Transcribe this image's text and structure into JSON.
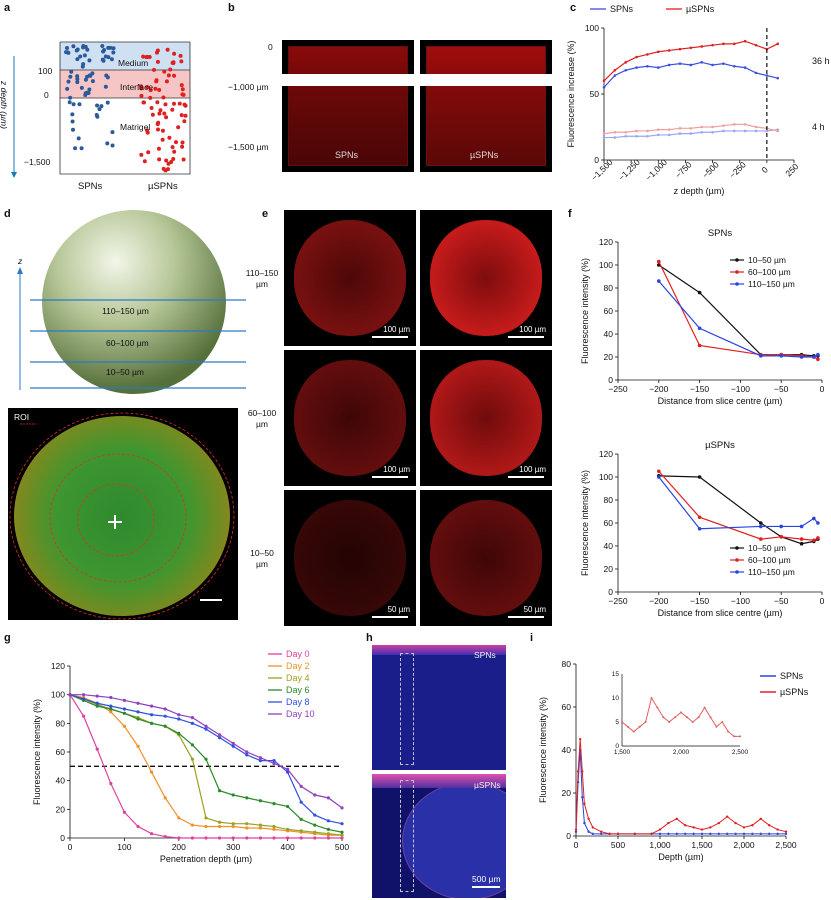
{
  "panels": {
    "a": {
      "label": "a",
      "y_axis_label": "z depth (µm)",
      "tick_100": "100",
      "tick_0": "0",
      "tick_m1500": "−1,500",
      "layer_medium": "Medium",
      "layer_interface": "Interface",
      "layer_matrigel": "Matrigel",
      "col_spns": "SPNs",
      "col_uspns": "µSPNs"
    },
    "b": {
      "label": "b",
      "tick_0": "0",
      "tick_m1000": "−1,000 µm",
      "tick_m1500": "−1,500 µm",
      "caption_spns": "SPNs",
      "caption_uspns": "µSPNs"
    },
    "c": {
      "label": "c"
    },
    "d": {
      "label": "d",
      "axis_z": "z",
      "band_110_150": "110–150 µm",
      "band_60_100": "60–100 µm",
      "band_10_50": "10–50 µm",
      "roi_label": "ROI"
    },
    "e": {
      "label": "e",
      "row1_label": "110–150 µm",
      "row2_label": "60–100 µm",
      "row3_label": "10–50 µm",
      "scale_100": "100 µm",
      "scale_50": "50 µm"
    },
    "f": {
      "label": "f"
    },
    "g": {
      "label": "g"
    },
    "h": {
      "label": "h",
      "caption_spns": "SPNs",
      "caption_uspns": "µSPNs",
      "scale": "500 µm"
    },
    "i": {
      "label": "i"
    }
  },
  "chart_data": [
    {
      "id": "c",
      "type": "line",
      "title": "",
      "xlabel": "z depth (µm)",
      "ylabel": "Fluorescence increase (%)",
      "xlim": [
        -1500,
        250
      ],
      "ylim": [
        0,
        100
      ],
      "xticks": [
        -1500,
        -1250,
        -1000,
        -750,
        -500,
        -250,
        0,
        250
      ],
      "xtick_labels": [
        "−1,500",
        "−1,250",
        "−1,000",
        "−750",
        "−500",
        "−250",
        "0",
        "250"
      ],
      "yticks": [
        0,
        50,
        100
      ],
      "legend": [
        "SPNs",
        "µSPNs"
      ],
      "legend_position": "top",
      "annotations": [
        "36 h",
        "4 h"
      ],
      "colors": {
        "SPNs": "#3b4fe0",
        "µSPNs": "#e02020",
        "SPNs_light": "#9aa6f0",
        "µSPNs_light": "#f0a0a0"
      },
      "x": [
        -1500,
        -1400,
        -1300,
        -1200,
        -1100,
        -1000,
        -900,
        -800,
        -700,
        -600,
        -500,
        -400,
        -300,
        -200,
        -100,
        0,
        100
      ],
      "series": [
        {
          "name": "SPNs",
          "label": "36 h",
          "values": [
            55,
            64,
            68,
            70,
            71,
            70,
            72,
            73,
            72,
            74,
            72,
            73,
            71,
            70,
            66,
            64,
            62
          ]
        },
        {
          "name": "µSPNs",
          "label": "36 h",
          "values": [
            60,
            68,
            74,
            78,
            80,
            82,
            83,
            84,
            85,
            86,
            87,
            88,
            88,
            90,
            87,
            84,
            88
          ]
        },
        {
          "name": "SPNs",
          "label": "4 h",
          "values": [
            17,
            17,
            18,
            18,
            18,
            19,
            19,
            20,
            20,
            21,
            21,
            22,
            22,
            22,
            22,
            22,
            23
          ]
        },
        {
          "name": "µSPNs",
          "label": "4 h",
          "values": [
            20,
            21,
            21,
            22,
            22,
            23,
            23,
            24,
            24,
            25,
            25,
            26,
            27,
            27,
            25,
            24,
            22
          ]
        }
      ]
    },
    {
      "id": "f-top",
      "type": "line",
      "title": "SPNs",
      "xlabel": "Distance from slice centre (µm)",
      "ylabel": "Fluorescence intensity (%)",
      "xlim": [
        -250,
        0
      ],
      "ylim": [
        0,
        120
      ],
      "xticks": [
        -250,
        -200,
        -150,
        -100,
        -50,
        0
      ],
      "xtick_labels": [
        "−250",
        "−200",
        "−150",
        "−100",
        "−50",
        "0"
      ],
      "yticks": [
        0,
        20,
        40,
        60,
        80,
        100,
        120
      ],
      "legend_position": "right",
      "x": [
        -200,
        -150,
        -75,
        -50,
        -25,
        -10,
        -5
      ],
      "series": [
        {
          "name": "10–50 µm",
          "color": "#111111",
          "values": [
            100,
            76,
            22,
            22,
            22,
            21,
            21
          ]
        },
        {
          "name": "60–100 µm",
          "color": "#e02020",
          "values": [
            103,
            30,
            22,
            22,
            21,
            20,
            18
          ]
        },
        {
          "name": "110–150 µm",
          "color": "#2a44e0",
          "values": [
            86,
            45,
            21,
            21,
            20,
            20,
            22
          ]
        }
      ]
    },
    {
      "id": "f-bottom",
      "type": "line",
      "title": "µSPNs",
      "xlabel": "Distance from slice centre (µm)",
      "ylabel": "Fluorescence intensity (%)",
      "xlim": [
        -250,
        0
      ],
      "ylim": [
        0,
        120
      ],
      "xticks": [
        -250,
        -200,
        -150,
        -100,
        -50,
        0
      ],
      "xtick_labels": [
        "−250",
        "−200",
        "−150",
        "−100",
        "−50",
        "0"
      ],
      "yticks": [
        0,
        20,
        40,
        60,
        80,
        100,
        120
      ],
      "legend_position": "bottom-right",
      "x": [
        -200,
        -150,
        -75,
        -50,
        -25,
        -10,
        -5
      ],
      "series": [
        {
          "name": "10–50 µm",
          "color": "#111111",
          "values": [
            101,
            100,
            60,
            48,
            42,
            44,
            46
          ]
        },
        {
          "name": "60–100 µm",
          "color": "#e02020",
          "values": [
            105,
            65,
            46,
            48,
            46,
            45,
            47
          ]
        },
        {
          "name": "110–150 µm",
          "color": "#2a44e0",
          "values": [
            100,
            55,
            57,
            57,
            57,
            64,
            60
          ]
        }
      ]
    },
    {
      "id": "g",
      "type": "line",
      "title": "",
      "xlabel": "Penetration depth (µm)",
      "ylabel": "Fluorescence intensity (%)",
      "xlim": [
        0,
        500
      ],
      "ylim": [
        0,
        120
      ],
      "xticks": [
        0,
        100,
        200,
        300,
        400,
        500
      ],
      "yticks": [
        0,
        20,
        40,
        60,
        80,
        100,
        120
      ],
      "reference_line_y": 50,
      "legend_position": "top-right",
      "x": [
        0,
        25,
        50,
        75,
        100,
        125,
        150,
        175,
        200,
        225,
        250,
        275,
        300,
        325,
        350,
        375,
        400,
        425,
        450,
        475,
        500
      ],
      "series": [
        {
          "name": "Day 0",
          "color": "#e040a0",
          "values": [
            100,
            85,
            62,
            38,
            18,
            8,
            3,
            1,
            0,
            0,
            0,
            0,
            0,
            0,
            0,
            0,
            0,
            0,
            0,
            0,
            0
          ]
        },
        {
          "name": "Day 2",
          "color": "#f0902a",
          "values": [
            100,
            98,
            94,
            88,
            78,
            64,
            46,
            28,
            14,
            9,
            8,
            8,
            8,
            7,
            7,
            6,
            5,
            4,
            3,
            2,
            2
          ]
        },
        {
          "name": "Day 4",
          "color": "#9aa020",
          "values": [
            100,
            97,
            93,
            90,
            87,
            84,
            80,
            78,
            72,
            55,
            14,
            11,
            10,
            10,
            9,
            8,
            6,
            5,
            4,
            3,
            2
          ]
        },
        {
          "name": "Day 6",
          "color": "#2a8a2a",
          "values": [
            100,
            96,
            92,
            90,
            87,
            83,
            80,
            78,
            73,
            65,
            55,
            33,
            30,
            28,
            26,
            24,
            22,
            13,
            9,
            6,
            4
          ]
        },
        {
          "name": "Day 8",
          "color": "#3050e0",
          "values": [
            100,
            97,
            94,
            92,
            90,
            88,
            86,
            85,
            83,
            80,
            76,
            70,
            64,
            58,
            54,
            54,
            46,
            25,
            16,
            12,
            10
          ]
        },
        {
          "name": "Day 10",
          "color": "#9040c0",
          "values": [
            100,
            100,
            99,
            98,
            96,
            94,
            92,
            90,
            86,
            84,
            78,
            72,
            66,
            60,
            56,
            52,
            48,
            36,
            30,
            28,
            21
          ]
        }
      ]
    },
    {
      "id": "i",
      "type": "line",
      "title": "",
      "xlabel": "Depth (µm)",
      "ylabel": "Fluorescence intensity (%)",
      "xlim": [
        0,
        2500
      ],
      "ylim": [
        0,
        80
      ],
      "xticks": [
        0,
        500,
        1000,
        1500,
        2000,
        2500
      ],
      "xtick_labels": [
        "0",
        "500",
        "1,000",
        "1,500",
        "2,000",
        "2,500"
      ],
      "yticks": [
        0,
        20,
        40,
        60,
        80
      ],
      "legend": [
        "SPNs",
        "µSPNs"
      ],
      "legend_position": "top-right",
      "x": [
        0,
        25,
        50,
        75,
        100,
        150,
        200,
        300,
        400,
        500,
        700,
        900,
        1000,
        1100,
        1200,
        1300,
        1400,
        1500,
        1600,
        1700,
        1800,
        1900,
        2000,
        2100,
        2200,
        2300,
        2400,
        2500
      ],
      "series": [
        {
          "name": "SPNs",
          "color": "#2a44e0",
          "values": [
            2,
            25,
            40,
            18,
            6,
            2,
            1,
            1,
            1,
            1,
            1,
            1,
            1,
            1,
            1,
            1,
            1,
            1,
            1,
            1,
            1,
            1,
            1,
            1,
            1,
            1,
            1,
            1
          ]
        },
        {
          "name": "µSPNs",
          "color": "#e02020",
          "values": [
            3,
            30,
            45,
            30,
            15,
            8,
            4,
            2,
            1,
            1,
            1,
            1,
            3,
            6,
            8,
            5,
            4,
            3,
            4,
            6,
            9,
            6,
            4,
            5,
            8,
            5,
            3,
            2
          ]
        }
      ],
      "inset": {
        "xlim": [
          1500,
          2500
        ],
        "ylim": [
          0,
          15
        ],
        "xticks": [
          1500,
          2000,
          2500
        ],
        "xtick_labels": [
          "1,500",
          "2,000",
          "2,500"
        ],
        "yticks": [
          0,
          5,
          10,
          15
        ],
        "x": [
          1500,
          1550,
          1600,
          1650,
          1700,
          1750,
          1800,
          1850,
          1900,
          1950,
          2000,
          2050,
          2100,
          2150,
          2200,
          2250,
          2300,
          2350,
          2400,
          2450,
          2500
        ],
        "values": [
          5,
          4,
          3,
          4,
          5,
          10,
          8,
          6,
          5,
          6,
          7,
          6,
          5,
          6,
          8,
          6,
          4,
          5,
          3,
          2,
          2
        ]
      }
    }
  ]
}
